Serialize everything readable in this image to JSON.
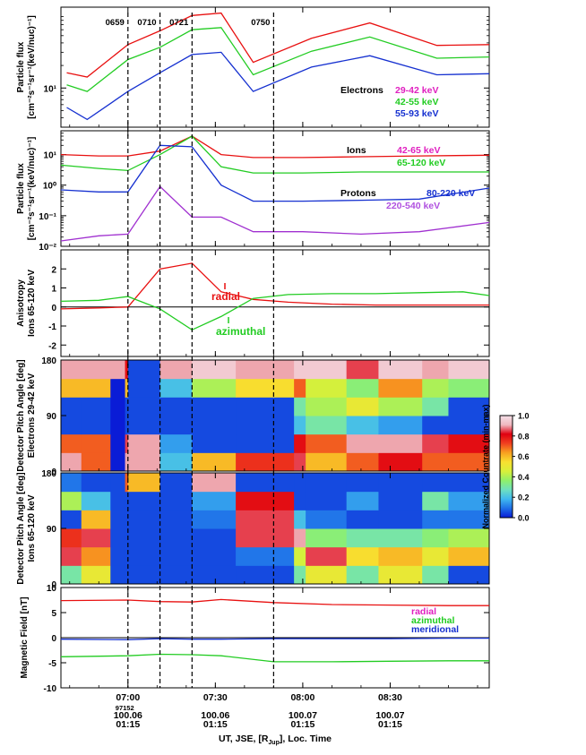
{
  "figure": {
    "time_axis": {
      "ticks": [
        "07:00",
        "07:30",
        "08:00",
        "08:30"
      ],
      "tick_minutes": [
        420,
        450,
        480,
        510
      ],
      "range_minutes": [
        397,
        544
      ],
      "extra_label": "97152",
      "sublabels": [
        {
          "at_minutes": 420,
          "lines": [
            "100.06",
            "01:15"
          ]
        },
        {
          "at_minutes": 450,
          "lines": [
            "100.06",
            "01:15"
          ]
        },
        {
          "at_minutes": 480,
          "lines": [
            "100.07",
            "01:15"
          ]
        },
        {
          "at_minutes": 510,
          "lines": [
            "100.07",
            "01:15"
          ]
        }
      ],
      "title_parts": [
        "UT, JSE, [R",
        "Jup",
        "], Loc. Time"
      ]
    },
    "event_lines": [
      {
        "minutes": 420,
        "label": "0659"
      },
      {
        "minutes": 431,
        "label": "0710"
      },
      {
        "minutes": 442,
        "label": "0721"
      },
      {
        "minutes": 470,
        "label": "0750"
      }
    ],
    "colorbar": {
      "label": "Normalized Countrate (min-max)",
      "ticks": [
        "1.0",
        "0.8",
        "0.6",
        "0.4",
        "0.2",
        "0.0"
      ],
      "stops": [
        "#0a1cd6",
        "#1e6fe8",
        "#3fb8f0",
        "#6ee0c0",
        "#8ff06a",
        "#d8f03a",
        "#f8e030",
        "#f8a020",
        "#f04020",
        "#e00010",
        "#f0b8c0",
        "#f4e0e8"
      ]
    }
  },
  "chart_data": [
    {
      "type": "line",
      "title": "",
      "ylabel": [
        "Particle flux",
        "[cm⁻²s⁻¹sr⁻¹(keV/nuc)⁻¹]"
      ],
      "yscale": "log",
      "ylim": [
        3,
        120
      ],
      "yticks": [
        {
          "value": 10,
          "label": "10¹"
        }
      ],
      "legend_title": "Electrons",
      "x": [
        399,
        406,
        420,
        431,
        442,
        452,
        463,
        483,
        503,
        526,
        544
      ],
      "series": [
        {
          "name": "29-42 keV",
          "color": "#e81010",
          "label_color": "#e020c0",
          "values": [
            16,
            14,
            38,
            58,
            93,
            100,
            22,
            46,
            74,
            37,
            38
          ]
        },
        {
          "name": "42-55 keV",
          "color": "#22cc22",
          "label_color": "#22cc22",
          "values": [
            11,
            9,
            24,
            35,
            60,
            64,
            15,
            31,
            48,
            25,
            26
          ]
        },
        {
          "name": "55-93 keV",
          "color": "#1530d0",
          "label_color": "#1530d0",
          "values": [
            5.5,
            3.8,
            9,
            16,
            28,
            30,
            9,
            19,
            27,
            15,
            15.5
          ]
        }
      ]
    },
    {
      "type": "line",
      "ylabel": [
        "Particle flux",
        "[cm⁻²s⁻¹sr⁻¹(keV/nuc)⁻¹]"
      ],
      "yscale": "log",
      "ylim": [
        0.01,
        60
      ],
      "yticks": [
        {
          "value": 10,
          "label": "10¹"
        },
        {
          "value": 1,
          "label": "10⁰"
        },
        {
          "value": 0.1,
          "label": "10⁻¹"
        },
        {
          "value": 0.01,
          "label": "10⁻²"
        }
      ],
      "x": [
        397,
        410,
        420,
        431,
        442,
        452,
        463,
        480,
        500,
        520,
        544
      ],
      "series": [
        {
          "name": "Ions 42-65 keV",
          "prefix": "Ions",
          "label": "42-65 keV",
          "color": "#e81010",
          "label_color": "#e020c0",
          "values": [
            10,
            9,
            9,
            13,
            40,
            10,
            8,
            8,
            8.5,
            9,
            9.5
          ]
        },
        {
          "name": "Ions 65-120 keV",
          "prefix": "",
          "label": "65-120 keV",
          "color": "#22cc22",
          "label_color": "#22cc22",
          "values": [
            4.5,
            3.5,
            3,
            10,
            40,
            4,
            2.5,
            2.5,
            2.7,
            2.7,
            2.7
          ]
        },
        {
          "name": "Protons 80-220 keV",
          "prefix": "Protons",
          "label": "80-220 keV",
          "color": "#1530d0",
          "label_color": "#1530d0",
          "values": [
            0.7,
            0.6,
            0.6,
            20,
            18,
            1.0,
            0.3,
            0.3,
            0.32,
            0.35,
            0.8
          ]
        },
        {
          "name": "220-540 keV",
          "prefix": "",
          "label": "220-540 keV",
          "color": "#a030d0",
          "label_color": "#b050e0",
          "values": [
            0.015,
            0.022,
            0.025,
            0.9,
            0.09,
            0.09,
            0.03,
            0.03,
            0.025,
            0.03,
            0.06
          ]
        }
      ]
    },
    {
      "type": "line",
      "ylabel": [
        "Anisotropy",
        "Ions 65-120 keV"
      ],
      "ylim": [
        -2.6,
        3.0
      ],
      "yticks": [
        2,
        1,
        0,
        -1,
        -2
      ],
      "zero_line": true,
      "x": [
        397,
        410,
        420,
        431,
        442,
        452,
        463,
        475,
        490,
        505,
        520,
        535,
        544
      ],
      "series": [
        {
          "name": "radial",
          "color": "#e81010",
          "label_color": "#e81010",
          "values": [
            -0.1,
            -0.05,
            0.0,
            2.0,
            2.3,
            0.8,
            0.4,
            0.25,
            0.15,
            0.1,
            0.1,
            0.1,
            0.1
          ]
        },
        {
          "name": "azimuthal",
          "color": "#22cc22",
          "label_color": "#22cc22",
          "values": [
            0.3,
            0.35,
            0.55,
            -0.1,
            -1.2,
            -0.5,
            0.45,
            0.65,
            0.7,
            0.7,
            0.75,
            0.8,
            0.6
          ]
        }
      ]
    },
    {
      "type": "heatmap",
      "ylabel": [
        "Detector Pitch Angle [deg]",
        "Electrons 29-42 keV"
      ],
      "ylim": [
        0,
        180
      ],
      "yticks": [
        0,
        90,
        180
      ],
      "x_edges": [
        397,
        404,
        414,
        419,
        420,
        431,
        442,
        457,
        477,
        481,
        495,
        506,
        521,
        530,
        544
      ],
      "y_edges": [
        0,
        30,
        60,
        90,
        120,
        150,
        180
      ],
      "values": [
        [
          0.9,
          0.7,
          0.0,
          0.9,
          0.9,
          0.2,
          0.6,
          0.75,
          0.85,
          0.6,
          0.7,
          0.8,
          0.7,
          0.7
        ],
        [
          0.7,
          0.7,
          0.0,
          0.85,
          0.9,
          0.15,
          0.05,
          0.05,
          0.8,
          0.7,
          0.9,
          0.9,
          0.85,
          0.8
        ],
        [
          0.05,
          0.05,
          0.0,
          0.05,
          0.05,
          0.05,
          0.05,
          0.05,
          0.2,
          0.3,
          0.2,
          0.15,
          0.05,
          0.05
        ],
        [
          0.05,
          0.05,
          0.0,
          0.05,
          0.05,
          0.05,
          0.05,
          0.05,
          0.3,
          0.4,
          0.5,
          0.4,
          0.3,
          0.05
        ],
        [
          0.6,
          0.6,
          0.0,
          0.6,
          0.05,
          0.2,
          0.4,
          0.55,
          0.7,
          0.45,
          0.35,
          0.65,
          0.4,
          0.35
        ],
        [
          0.9,
          0.9,
          0.9,
          0.8,
          0.05,
          0.9,
          0.95,
          0.9,
          0.95,
          0.95,
          0.85,
          0.95,
          0.9,
          0.95
        ]
      ]
    },
    {
      "type": "heatmap",
      "ylabel": [
        "Detector Pitch Angle [deg]",
        "Ions 65-120 keV"
      ],
      "ylim": [
        0,
        180
      ],
      "yticks": [
        0,
        90,
        180
      ],
      "x_edges": [
        397,
        404,
        414,
        419,
        420,
        431,
        442,
        457,
        477,
        481,
        495,
        506,
        521,
        530,
        544
      ],
      "y_edges": [
        0,
        30,
        60,
        90,
        120,
        150,
        180
      ],
      "values": [
        [
          0.3,
          0.5,
          0.05,
          0.05,
          0.05,
          0.05,
          0.05,
          0.05,
          0.3,
          0.5,
          0.3,
          0.5,
          0.3,
          0.05
        ],
        [
          0.85,
          0.65,
          0.05,
          0.05,
          0.05,
          0.05,
          0.05,
          0.1,
          0.45,
          0.85,
          0.55,
          0.6,
          0.5,
          0.6
        ],
        [
          0.75,
          0.85,
          0.05,
          0.05,
          0.05,
          0.05,
          0.05,
          0.85,
          0.9,
          0.35,
          0.3,
          0.3,
          0.35,
          0.4
        ],
        [
          0.05,
          0.6,
          0.05,
          0.05,
          0.05,
          0.05,
          0.1,
          0.85,
          0.2,
          0.1,
          0.05,
          0.05,
          0.1,
          0.1
        ],
        [
          0.4,
          0.2,
          0.05,
          0.05,
          0.05,
          0.05,
          0.15,
          0.8,
          0.05,
          0.05,
          0.15,
          0.05,
          0.3,
          0.15
        ],
        [
          0.1,
          0.05,
          0.05,
          0.7,
          0.6,
          0.05,
          0.9,
          0.05,
          0.05,
          0.05,
          0.05,
          0.05,
          0.05,
          0.05
        ]
      ]
    },
    {
      "type": "line",
      "ylabel": [
        "Magnetic Field [nT]"
      ],
      "ylim": [
        -10,
        10
      ],
      "yticks": [
        10,
        5,
        0,
        -5,
        -10
      ],
      "zero_line": true,
      "x": [
        397,
        420,
        431,
        442,
        452,
        470,
        490,
        510,
        530,
        544
      ],
      "series": [
        {
          "name": "radial",
          "color": "#e81010",
          "label_color": "#e020c0",
          "values": [
            7.4,
            7.5,
            7.2,
            7.1,
            7.6,
            7.0,
            6.6,
            6.5,
            6.4,
            6.4
          ]
        },
        {
          "name": "azimuthal",
          "color": "#22cc22",
          "label_color": "#22cc22",
          "values": [
            -3.8,
            -3.6,
            -3.3,
            -3.4,
            -3.6,
            -4.8,
            -4.8,
            -4.7,
            -4.6,
            -4.6
          ]
        },
        {
          "name": "meridional",
          "color": "#1530d0",
          "label_color": "#1530d0",
          "values": [
            -0.3,
            -0.4,
            -0.2,
            -0.3,
            -0.3,
            -0.2,
            -0.2,
            -0.2,
            -0.1,
            -0.1
          ]
        }
      ]
    }
  ]
}
